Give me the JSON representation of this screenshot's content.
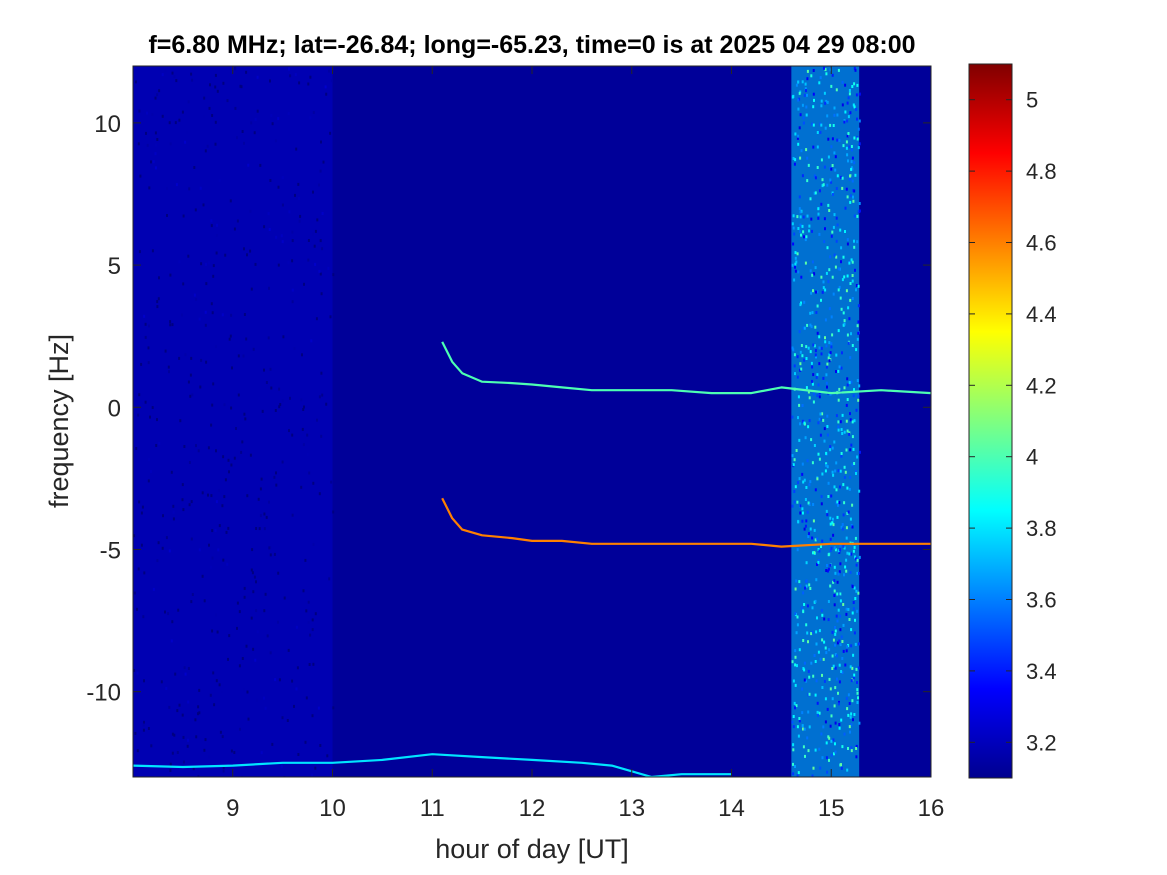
{
  "chart_data": {
    "type": "heatmap",
    "title": "f=6.80 MHz;  lat=-26.84; long=-65.23, time=0 is at 2025 04 29 08:00",
    "xlabel": "hour of day [UT]",
    "ylabel": "frequency [Hz]",
    "xlim": [
      8,
      16
    ],
    "ylim": [
      -13,
      12
    ],
    "x_ticks": [
      9,
      10,
      11,
      12,
      13,
      14,
      15,
      16
    ],
    "x_tick_labels": [
      "9",
      "10",
      "11",
      "12",
      "13",
      "14",
      "15",
      "16"
    ],
    "y_ticks": [
      -10,
      -5,
      0,
      5,
      10
    ],
    "y_tick_labels": [
      "-10",
      "-5",
      "0",
      "5",
      "10"
    ],
    "colormap": "jet",
    "color_range": [
      3.1,
      5.1
    ],
    "colorbar_ticks": [
      3.2,
      3.4,
      3.6,
      3.8,
      4,
      4.2,
      4.4,
      4.6,
      4.8,
      5
    ],
    "colorbar_tick_labels": [
      "3.2",
      "3.4",
      "3.6",
      "3.8",
      "4",
      "4.2",
      "4.4",
      "4.6",
      "4.8",
      "5"
    ],
    "background_level": 3.15,
    "broadband_noise_bands": [
      {
        "x_start": 14.6,
        "x_end": 15.28,
        "level": 3.75
      },
      {
        "x_start": 8.0,
        "x_end": 10.0,
        "level": 3.35
      }
    ],
    "series": [
      {
        "x": [
          11.1,
          11.2,
          11.3,
          11.5,
          11.8,
          12.0,
          12.3,
          12.6,
          13.0,
          13.4,
          13.8,
          14.2,
          14.5,
          15.0,
          15.5,
          16.0
        ],
        "y": [
          2.3,
          1.6,
          1.2,
          0.9,
          0.85,
          0.8,
          0.7,
          0.6,
          0.6,
          0.6,
          0.5,
          0.5,
          0.7,
          0.5,
          0.6,
          0.5
        ],
        "level": 4.0
      },
      {
        "x": [
          11.1,
          11.2,
          11.3,
          11.5,
          11.8,
          12.0,
          12.3,
          12.6,
          13.0,
          13.4,
          13.8,
          14.2,
          14.5,
          15.0,
          15.5,
          16.0
        ],
        "y": [
          -3.2,
          -3.9,
          -4.3,
          -4.5,
          -4.6,
          -4.7,
          -4.7,
          -4.8,
          -4.8,
          -4.8,
          -4.8,
          -4.8,
          -4.9,
          -4.8,
          -4.8,
          -4.8
        ],
        "level": 4.6
      },
      {
        "x": [
          8.0,
          8.5,
          9.0,
          9.5,
          10.0,
          10.5,
          11.0,
          11.5,
          12.0,
          12.5,
          12.8,
          13.0,
          13.2,
          13.5,
          14.0
        ],
        "y": [
          -12.6,
          -12.65,
          -12.6,
          -12.5,
          -12.5,
          -12.4,
          -12.2,
          -12.3,
          -12.4,
          -12.5,
          -12.6,
          -12.8,
          -13.0,
          -12.9,
          -12.9
        ],
        "level": 3.8
      }
    ]
  }
}
